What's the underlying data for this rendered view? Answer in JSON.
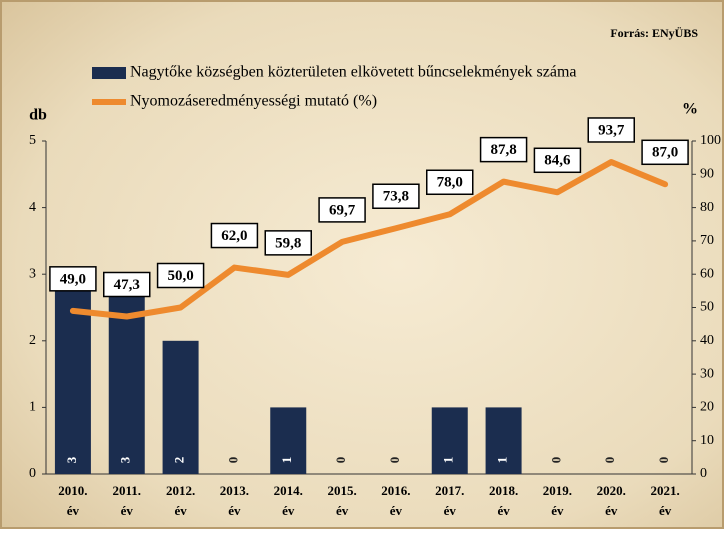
{
  "chart_data": {
    "type": "bar_line",
    "source": "Forrás: ENyÜBS",
    "y_label": "db",
    "y2_label": "%",
    "categories": [
      "2010. év",
      "2011. év",
      "2012. év",
      "2013. év",
      "2014. év",
      "2015. év",
      "2016. év",
      "2017. év",
      "2018. év",
      "2019. év",
      "2020. év",
      "2021. év"
    ],
    "series": [
      {
        "name": "Nagytőke községben közterületen elkövetett bűncselekmények száma",
        "color": "#1b2d4f",
        "type": "bar",
        "values": [
          3,
          3,
          2,
          0,
          1,
          0,
          0,
          1,
          1,
          0,
          0,
          0
        ]
      },
      {
        "name": "Nyomozáseredményességi mutató (%)",
        "color": "#ee8a2e",
        "type": "line",
        "axis": "y2",
        "values": [
          49.0,
          47.3,
          50.0,
          62.0,
          59.8,
          69.7,
          73.8,
          78.0,
          87.8,
          84.6,
          93.7,
          87.0
        ],
        "value_labels": [
          "49,0",
          "47,3",
          "50,0",
          "62,0",
          "59,8",
          "69,7",
          "73,8",
          "78,0",
          "87,8",
          "84,6",
          "93,7",
          "87,0"
        ]
      }
    ],
    "ylim": [
      0,
      5
    ],
    "yticks": [
      0,
      1,
      2,
      3,
      4,
      5
    ],
    "y2lim": [
      0,
      100
    ],
    "y2ticks": [
      0,
      10,
      20,
      30,
      40,
      50,
      60,
      70,
      80,
      90,
      100
    ]
  }
}
